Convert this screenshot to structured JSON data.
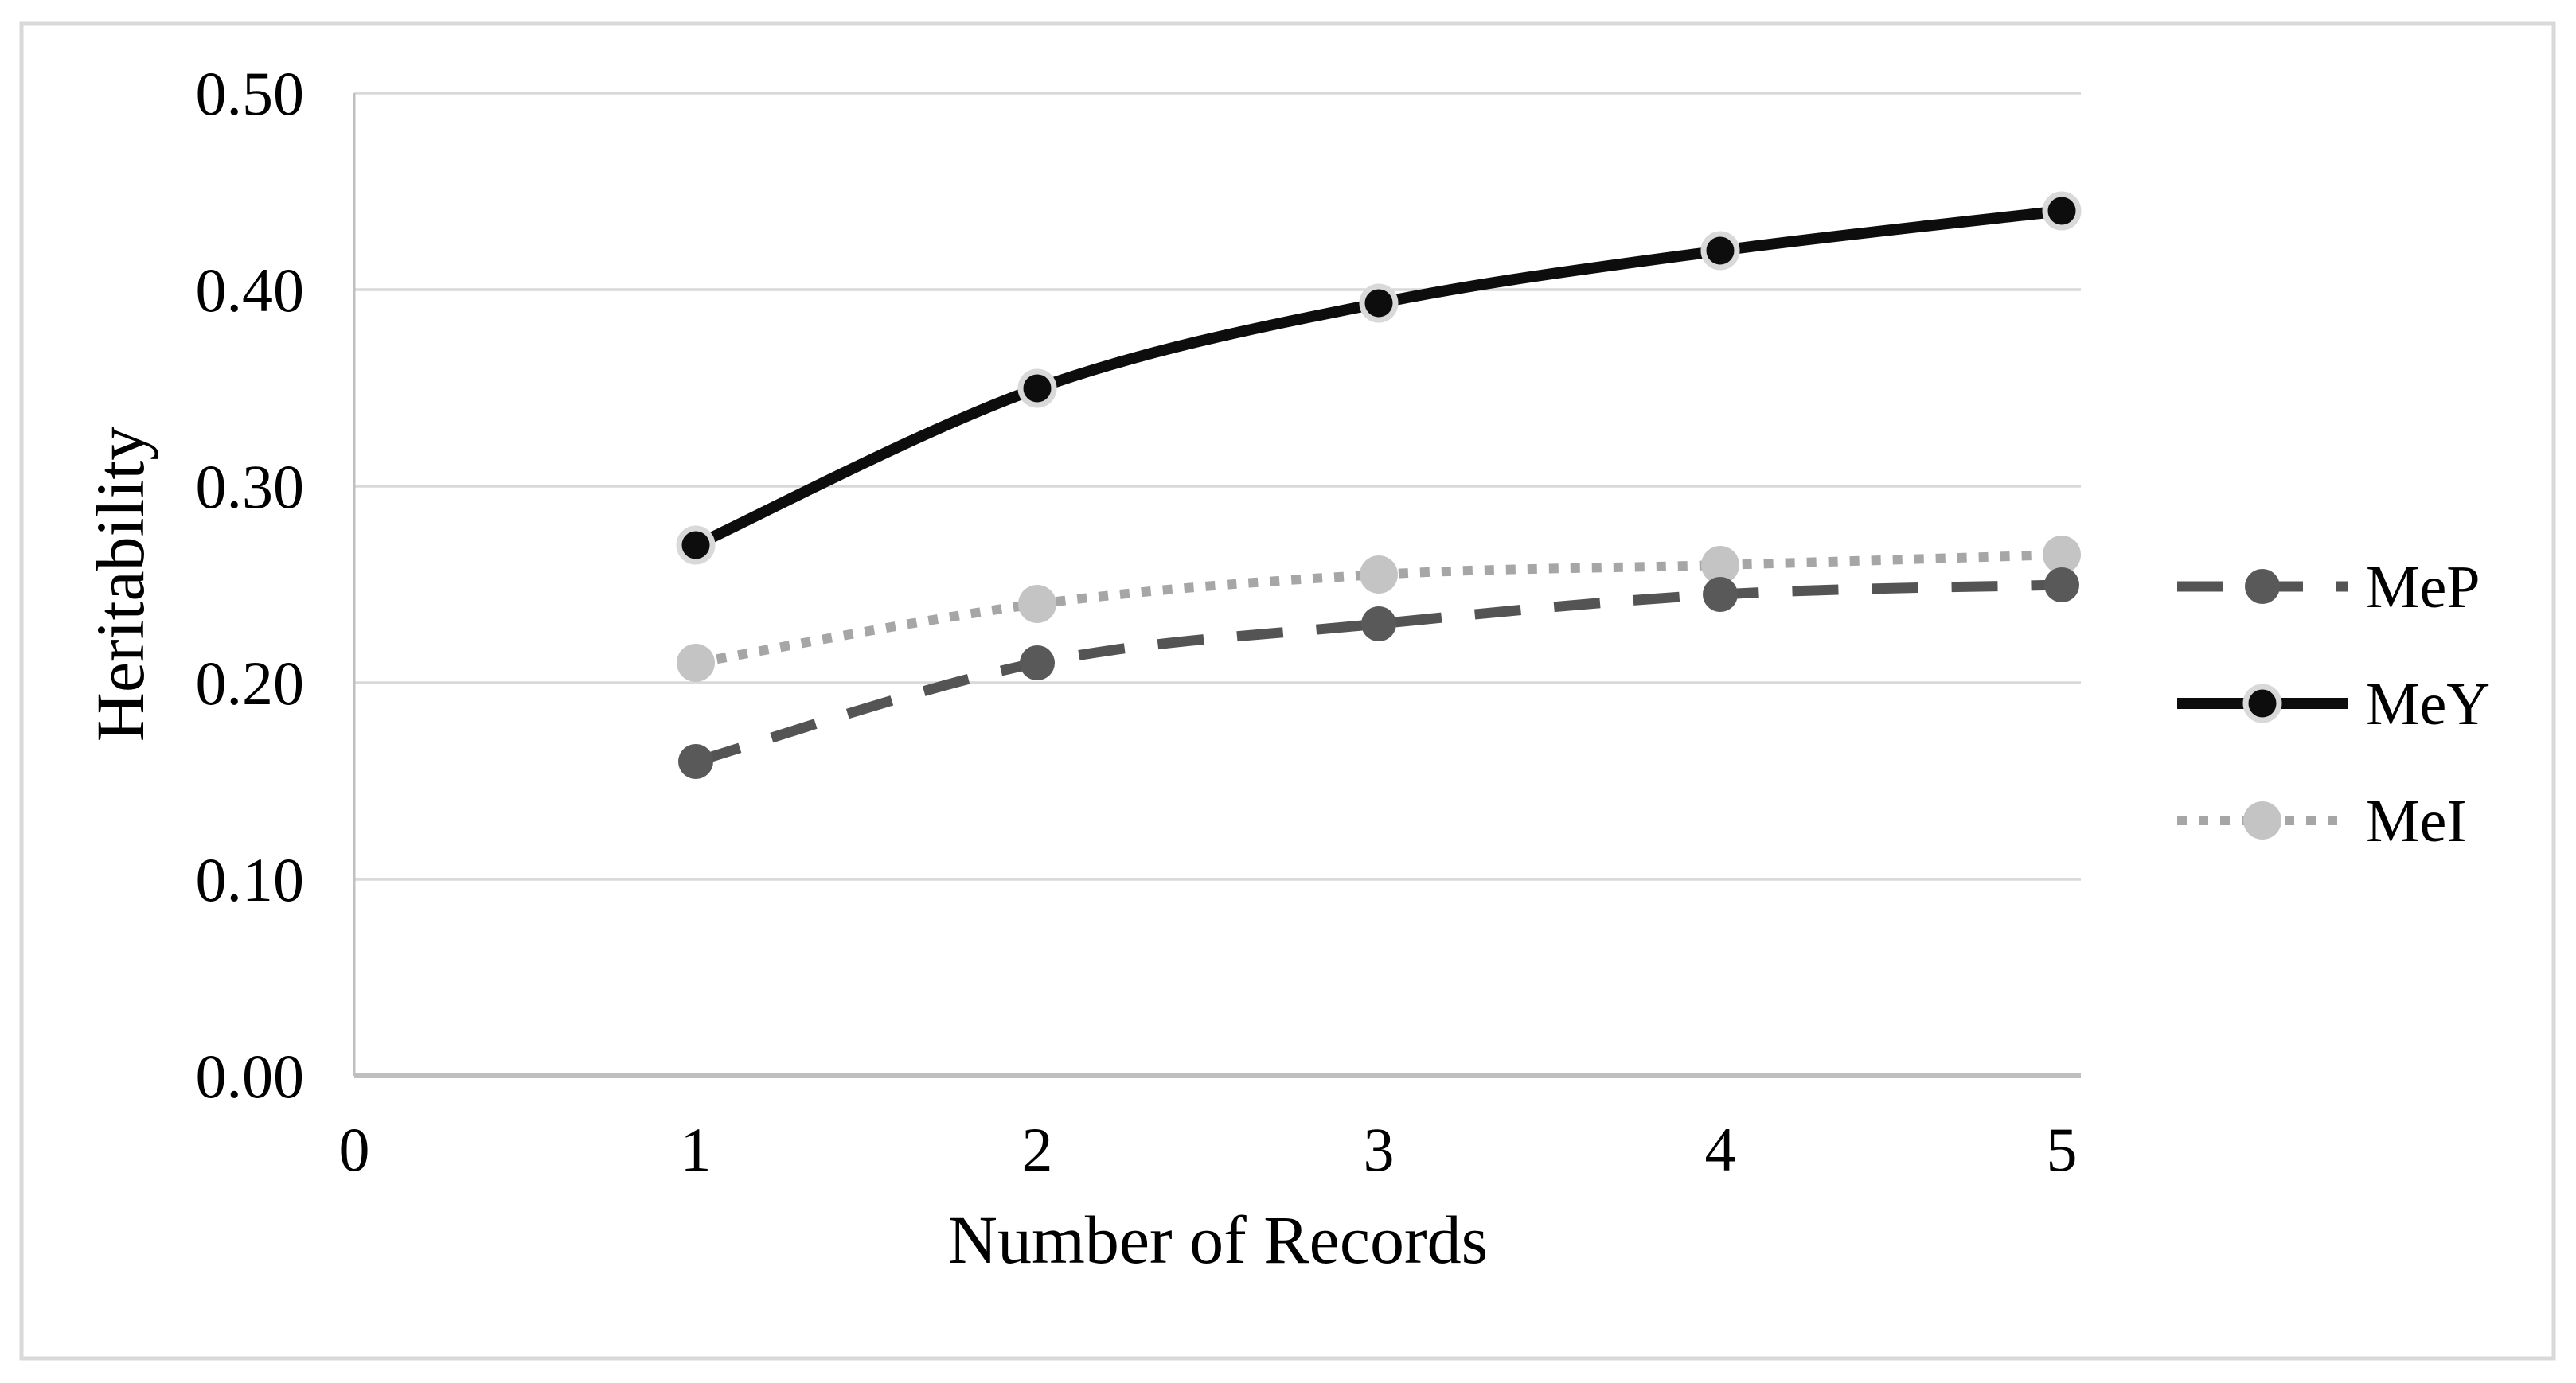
{
  "chart_data": {
    "type": "line",
    "title": "",
    "xlabel": "Number of Records",
    "ylabel": "Heritability",
    "x": [
      1,
      2,
      3,
      4,
      5
    ],
    "x_tick_labels": [
      "0",
      "1",
      "2",
      "3",
      "4",
      "5"
    ],
    "y_tick_labels": [
      "0.00",
      "0.10",
      "0.20",
      "0.30",
      "0.40",
      "0.50"
    ],
    "xlim": [
      0,
      5
    ],
    "ylim": [
      0,
      0.5
    ],
    "grid": "horizontal",
    "gridline_color": "#d9d9d9",
    "axis_line_color": "#bfbfbf",
    "legend_position": "right",
    "series": [
      {
        "name": "MeP",
        "values": [
          0.16,
          0.21,
          0.23,
          0.245,
          0.25
        ],
        "line_style": "dashed",
        "line_color": "#545454",
        "marker_color": "#595959",
        "marker_outline": "none"
      },
      {
        "name": "MeY",
        "values": [
          0.27,
          0.35,
          0.393,
          0.42,
          0.44
        ],
        "line_style": "solid",
        "line_color": "#0d0d0d",
        "marker_color": "#0d0d0d",
        "marker_outline": "#d9d9d9"
      },
      {
        "name": "MeI",
        "values": [
          0.21,
          0.24,
          0.255,
          0.26,
          0.265
        ],
        "line_style": "dotted",
        "line_color": "#a6a6a6",
        "marker_color": "#c4c4c4",
        "marker_outline": "none"
      }
    ]
  }
}
